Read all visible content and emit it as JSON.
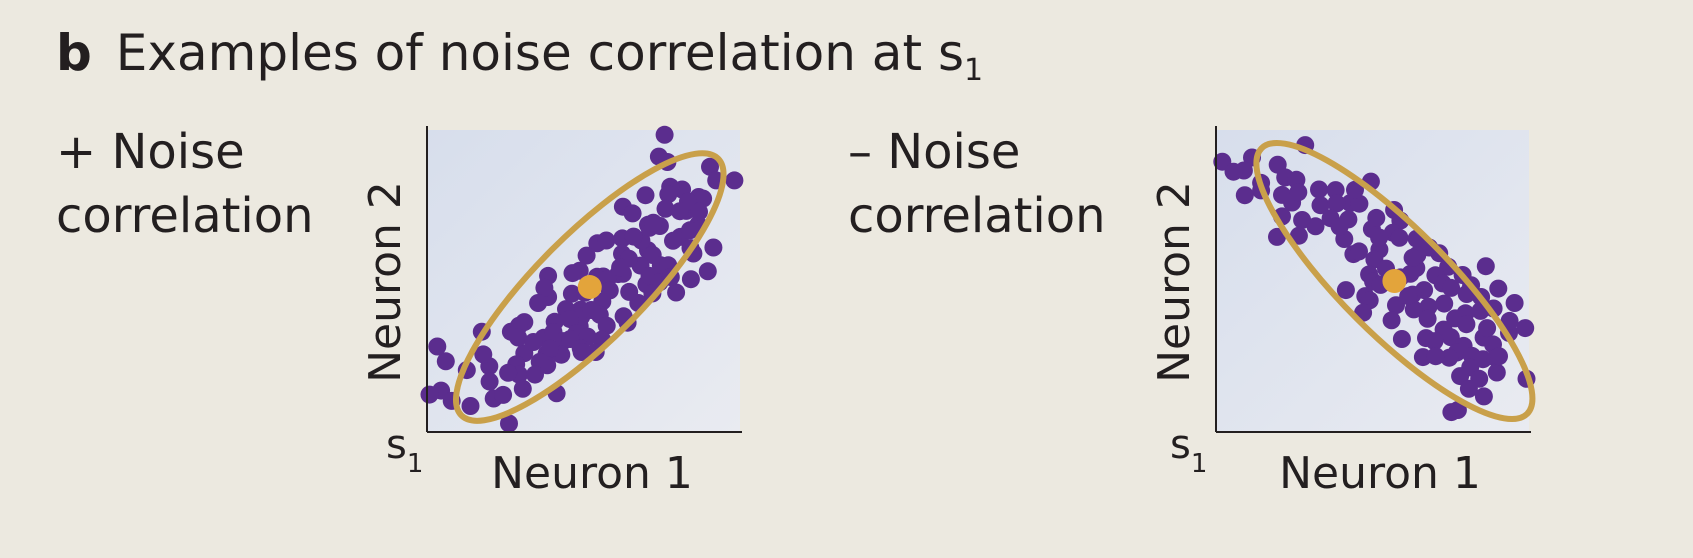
{
  "figure": {
    "panel_letter": "b",
    "title_main": "Examples of noise correlation at s",
    "title_sub": "1"
  },
  "colors": {
    "background": "#ece9e0",
    "plot_bg": "#dfe3ee",
    "dots": "#5b2d8e",
    "ellipse": "#c9a04a",
    "mean": "#e3a43b",
    "axis": "#231f20"
  },
  "panels": [
    {
      "label_line1": "+ Noise",
      "label_line2": "correlation",
      "ylabel": "Neuron 2",
      "xlabel": "Neuron 1",
      "stimulus_label": "s",
      "stimulus_sub": "1"
    },
    {
      "label_line1": "– Noise",
      "label_line2": "correlation",
      "ylabel": "Neuron 2",
      "xlabel": "Neuron 1",
      "stimulus_label": "s",
      "stimulus_sub": "1"
    }
  ],
  "chart_data": [
    {
      "type": "scatter",
      "xlabel": "Neuron 1",
      "ylabel": "Neuron 2",
      "xlim": [
        0,
        100
      ],
      "ylim": [
        0,
        100
      ],
      "grid": false,
      "mean": [
        52,
        48
      ],
      "ellipse": {
        "center": [
          52,
          48
        ],
        "semi_major": 58,
        "semi_minor": 17,
        "angle_deg": 45
      },
      "points": [
        [
          75.9,
          98.4
        ],
        [
          74.1,
          91.2
        ],
        [
          76.8,
          89.4
        ],
        [
          90.4,
          87.8
        ],
        [
          98.2,
          83.3
        ],
        [
          92.4,
          83.3
        ],
        [
          81.5,
          80.3
        ],
        [
          77.7,
          81.2
        ],
        [
          77.1,
          78.7
        ],
        [
          86.8,
          77.8
        ],
        [
          62.6,
          74.6
        ],
        [
          69.8,
          78.4
        ],
        [
          82.8,
          73.2
        ],
        [
          76.2,
          73.9
        ],
        [
          88.2,
          77.3
        ],
        [
          83.4,
          76.3
        ],
        [
          80.8,
          73.1
        ],
        [
          86.6,
          68.6
        ],
        [
          62.4,
          64.1
        ],
        [
          70.6,
          68.6
        ],
        [
          74.4,
          68.2
        ],
        [
          86.9,
          72.9
        ],
        [
          80.9,
          64.6
        ],
        [
          70.6,
          60.2
        ],
        [
          91.5,
          61.1
        ],
        [
          72.1,
          58.6
        ],
        [
          68.5,
          63.4
        ],
        [
          66.0,
          64.7
        ],
        [
          71.1,
          67.6
        ],
        [
          54.4,
          62.5
        ],
        [
          62.3,
          59.0
        ],
        [
          68.2,
          55.1
        ],
        [
          51.0,
          58.4
        ],
        [
          61.1,
          52.3
        ],
        [
          64.5,
          57.4
        ],
        [
          74.7,
          55.2
        ],
        [
          70.1,
          48.9
        ],
        [
          84.2,
          60.9
        ],
        [
          77.1,
          55.2
        ],
        [
          85.1,
          59.1
        ],
        [
          71.1,
          51.7
        ],
        [
          89.7,
          53.2
        ],
        [
          84.3,
          50.6
        ],
        [
          74.3,
          49.6
        ],
        [
          62.6,
          52.4
        ],
        [
          79.6,
          46.2
        ],
        [
          56.3,
          51.5
        ],
        [
          54.3,
          51.4
        ],
        [
          77.9,
          51.3
        ],
        [
          61.7,
          54.5
        ],
        [
          57.6,
          50.5
        ],
        [
          38.7,
          51.7
        ],
        [
          46.3,
          45.8
        ],
        [
          48.8,
          53.4
        ],
        [
          67.5,
          42.7
        ],
        [
          58.4,
          46.9
        ],
        [
          64.6,
          46.4
        ],
        [
          72.0,
          45.9
        ],
        [
          56.0,
          43.2
        ],
        [
          50.4,
          46.1
        ],
        [
          46.5,
          52.6
        ],
        [
          49.1,
          40.5
        ],
        [
          38.7,
          44.7
        ],
        [
          48.8,
          35.0
        ],
        [
          55.2,
          38.8
        ],
        [
          44.4,
          40.7
        ],
        [
          37.5,
          47.7
        ],
        [
          35.5,
          42.7
        ],
        [
          57.4,
          35.2
        ],
        [
          49.3,
          38.2
        ],
        [
          52.5,
          40.4
        ],
        [
          64.1,
          36.2
        ],
        [
          49.1,
          28.7
        ],
        [
          31.1,
          36.4
        ],
        [
          45.7,
          37.4
        ],
        [
          40.8,
          36.5
        ],
        [
          37.3,
          31.2
        ],
        [
          26.8,
          33.2
        ],
        [
          29.4,
          35.2
        ],
        [
          62.8,
          38.3
        ],
        [
          31.1,
          26.1
        ],
        [
          55.9,
          30.6
        ],
        [
          29.1,
          31.3
        ],
        [
          40.4,
          33.1
        ],
        [
          47.7,
          32.6
        ],
        [
          51.3,
          31.6
        ],
        [
          43.5,
          30.1
        ],
        [
          42.9,
          25.6
        ],
        [
          38.2,
          25.9
        ],
        [
          45.8,
          30.8
        ],
        [
          49.1,
          27.7
        ],
        [
          53.9,
          26.5
        ],
        [
          39.3,
          27.6
        ],
        [
          49.4,
          26.5
        ],
        [
          34.0,
          29.8
        ],
        [
          17.5,
          33.2
        ],
        [
          19.9,
          21.8
        ],
        [
          18.0,
          25.7
        ],
        [
          28.5,
          22.4
        ],
        [
          38.4,
          22.1
        ],
        [
          29.4,
          19.0
        ],
        [
          36.0,
          23.2
        ],
        [
          20.0,
          16.7
        ],
        [
          25.9,
          19.6
        ],
        [
          41.4,
          12.8
        ],
        [
          34.5,
          19.0
        ],
        [
          30.6,
          14.3
        ],
        [
          12.7,
          20.5
        ],
        [
          6.0,
          23.4
        ],
        [
          3.3,
          28.3
        ],
        [
          21.3,
          11.1
        ],
        [
          4.5,
          13.7
        ],
        [
          0.8,
          12.4
        ],
        [
          13.9,
          8.6
        ],
        [
          26.2,
          2.8
        ],
        [
          24.3,
          12.3
        ],
        [
          7.9,
          10.3
        ],
        [
          72.3,
          69.3
        ],
        [
          65.7,
          72.4
        ],
        [
          57.3,
          63.4
        ],
        [
          78.6,
          63.3
        ],
        [
          84.0,
          66.8
        ]
      ]
    },
    {
      "type": "scatter",
      "xlabel": "Neuron 1",
      "ylabel": "Neuron 2",
      "xlim": [
        0,
        100
      ],
      "ylim": [
        0,
        100
      ],
      "grid": false,
      "mean": [
        57,
        50
      ],
      "ellipse": {
        "center": [
          57,
          50
        ],
        "semi_major": 60,
        "semi_minor": 17,
        "angle_deg": -45
      },
      "points": [
        [
          2.0,
          89.5
        ],
        [
          11.5,
          90.9
        ],
        [
          19.7,
          88.5
        ],
        [
          8.9,
          86.6
        ],
        [
          14.4,
          82.5
        ],
        [
          14.4,
          80.0
        ],
        [
          22.1,
          84.3
        ],
        [
          25.7,
          83.5
        ],
        [
          9.2,
          78.4
        ],
        [
          21.1,
          78.5
        ],
        [
          38.2,
          80.1
        ],
        [
          24.3,
          76.0
        ],
        [
          32.9,
          80.3
        ],
        [
          26.3,
          79.4
        ],
        [
          49.5,
          82.9
        ],
        [
          42.9,
          75.8
        ],
        [
          33.4,
          75.1
        ],
        [
          21.1,
          71.4
        ],
        [
          27.5,
          70.2
        ],
        [
          38.5,
          75.7
        ],
        [
          36.6,
          70.8
        ],
        [
          42.3,
          70.4
        ],
        [
          45.8,
          75.6
        ],
        [
          31.8,
          68.1
        ],
        [
          49.8,
          67.2
        ],
        [
          41.0,
          63.9
        ],
        [
          19.5,
          64.6
        ],
        [
          26.5,
          65.0
        ],
        [
          51.2,
          70.9
        ],
        [
          58.9,
          70.0
        ],
        [
          56.5,
          66.0
        ],
        [
          58.6,
          64.3
        ],
        [
          64.1,
          64.0
        ],
        [
          52.2,
          60.4
        ],
        [
          43.9,
          58.9
        ],
        [
          50.6,
          57.1
        ],
        [
          48.9,
          52.2
        ],
        [
          68.1,
          61.1
        ],
        [
          71.3,
          59.2
        ],
        [
          64.0,
          54.3
        ],
        [
          58.9,
          51.2
        ],
        [
          50.2,
          49.8
        ],
        [
          47.7,
          45.0
        ],
        [
          66.5,
          47.0
        ],
        [
          52.6,
          48.7
        ],
        [
          74.2,
          54.7
        ],
        [
          70.1,
          51.9
        ],
        [
          86.2,
          54.9
        ],
        [
          49.1,
          43.6
        ],
        [
          62.8,
          45.5
        ],
        [
          62.1,
          52.4
        ],
        [
          41.5,
          47.0
        ],
        [
          72.4,
          49.2
        ],
        [
          78.8,
          52.0
        ],
        [
          75.1,
          47.7
        ],
        [
          81.5,
          48.6
        ],
        [
          67.9,
          41.5
        ],
        [
          47.0,
          39.5
        ],
        [
          57.5,
          42.0
        ],
        [
          84.7,
          44.7
        ],
        [
          72.9,
          42.5
        ],
        [
          80.1,
          45.7
        ],
        [
          90.2,
          47.5
        ],
        [
          63.2,
          40.6
        ],
        [
          67.6,
          37.5
        ],
        [
          56.1,
          37.0
        ],
        [
          79.7,
          39.3
        ],
        [
          67.1,
          31.1
        ],
        [
          76.4,
          37.6
        ],
        [
          72.7,
          33.9
        ],
        [
          84.5,
          40.1
        ],
        [
          80.0,
          35.7
        ],
        [
          59.4,
          30.8
        ],
        [
          85.5,
          31.3
        ],
        [
          95.4,
          42.7
        ],
        [
          86.6,
          34.4
        ],
        [
          75.0,
          31.4
        ],
        [
          79.1,
          28.5
        ],
        [
          69.8,
          30.1
        ],
        [
          93.6,
          32.8
        ],
        [
          76.9,
          26.3
        ],
        [
          66.1,
          24.8
        ],
        [
          74.5,
          24.6
        ],
        [
          88.5,
          29.0
        ],
        [
          81.8,
          25.2
        ],
        [
          81.2,
          21.4
        ],
        [
          85.3,
          24.1
        ],
        [
          89.4,
          24.5
        ],
        [
          89.7,
          19.7
        ],
        [
          85.6,
          11.8
        ],
        [
          78.0,
          18.5
        ],
        [
          99.2,
          17.6
        ],
        [
          77.3,
          7.3
        ],
        [
          75.2,
          6.6
        ],
        [
          88.7,
          40.9
        ],
        [
          98.8,
          34.4
        ],
        [
          84.1,
          17.6
        ],
        [
          64.3,
          58.6
        ],
        [
          52.1,
          64.4
        ],
        [
          45.7,
          59.8
        ],
        [
          54.3,
          54.1
        ],
        [
          61.4,
          45.0
        ],
        [
          90.4,
          25.1
        ],
        [
          28.5,
          95.0
        ],
        [
          5.6,
          86.2
        ],
        [
          39.5,
          68.0
        ],
        [
          44.4,
          80.2
        ],
        [
          56.9,
          73.5
        ],
        [
          62.8,
          57.7
        ],
        [
          70.2,
          25.1
        ],
        [
          80.8,
          14.3
        ],
        [
          93.8,
          36.8
        ]
      ]
    }
  ]
}
